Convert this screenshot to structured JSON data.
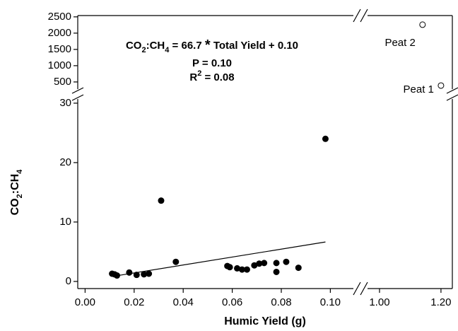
{
  "chart_data": {
    "type": "scatter",
    "x_label": "Humic Yield (g)",
    "y_label": [
      "CO",
      "2",
      ":CH",
      "4"
    ],
    "annotations": [
      [
        "CO",
        "2",
        ":CH",
        "4",
        " = 66.7 ",
        "*",
        " Total Yield + 0.10"
      ],
      [
        "P = 0.10"
      ],
      [
        "R",
        "2",
        " = 0.08"
      ]
    ],
    "xlim": [
      -0.003,
      0.1094
    ],
    "x2lim": [
      0.961,
      1.237
    ],
    "ylim": [
      -1.2,
      30.7
    ],
    "y2lim": [
      280,
      2540
    ],
    "xticks": [
      {
        "value": 0,
        "label": "0.00"
      },
      {
        "value": 0.02,
        "label": "0.02"
      },
      {
        "value": 0.04,
        "label": "0.04"
      },
      {
        "value": 0.06,
        "label": "0.06"
      },
      {
        "value": 0.08,
        "label": "0.08"
      },
      {
        "value": 0.1,
        "label": "0.10"
      }
    ],
    "x2ticks": [
      {
        "value": 1.0,
        "label": "1.00"
      },
      {
        "value": 1.2,
        "label": "1.20"
      }
    ],
    "yticks": [
      0,
      10,
      20,
      30
    ],
    "y2ticks": [
      500,
      1000,
      1500,
      2000,
      2500
    ],
    "series": [
      {
        "color": "#000000",
        "x": [
          0.011,
          0.012,
          0.013,
          0.018,
          0.021,
          0.024,
          0.026,
          0.031,
          0.037,
          0.058,
          0.059,
          0.062,
          0.064,
          0.066,
          0.069,
          0.071,
          0.073,
          0.078,
          0.078,
          0.082,
          0.087,
          0.098
        ],
        "values": [
          1.3,
          1.2,
          1.0,
          1.5,
          1.1,
          1.2,
          1.3,
          13.6,
          3.3,
          2.6,
          2.4,
          2.2,
          2.0,
          2.0,
          2.7,
          3.0,
          3.1,
          3.1,
          1.6,
          3.3,
          2.3,
          24.0
        ]
      },
      {
        "color": "#000000",
        "axis": "y2",
        "xaxis": "x2",
        "x": [
          1.2,
          1.14
        ],
        "values": [
          390,
          2260
        ],
        "point_labels": [
          "Peat 1",
          "Peat 2"
        ]
      }
    ],
    "fit_line": {
      "x": [
        0.011,
        0.098
      ],
      "values": [
        0.83,
        6.64
      ]
    }
  }
}
